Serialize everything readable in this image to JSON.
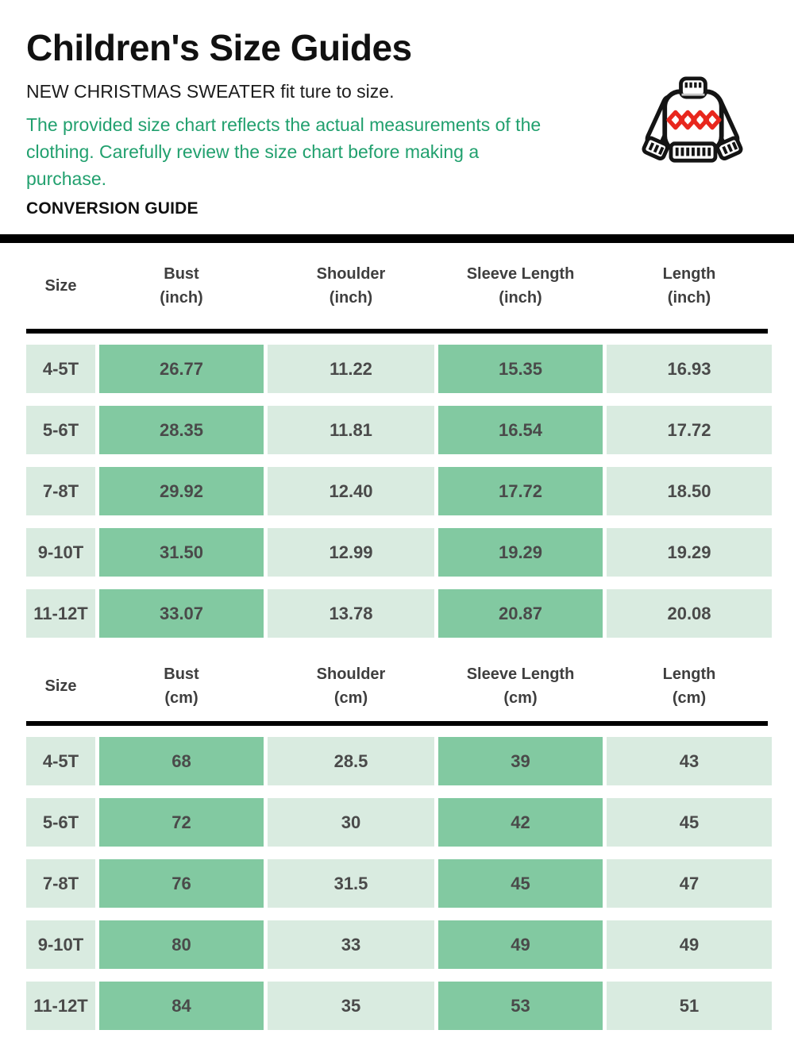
{
  "header": {
    "title": "Children's Size Guides",
    "subtitle": "NEW CHRISTMAS SWEATER fit ture to size.",
    "note": "The provided size chart reflects the actual measurements of the clothing. Carefully review the size chart before making a purchase.",
    "section_label": "CONVERSION GUIDE"
  },
  "icon": {
    "name": "christmas-sweater-icon",
    "outline_color": "#141414",
    "diamond_color": "#e8271d"
  },
  "colors": {
    "cell_dark": "#82c9a1",
    "cell_light": "#d9ebe0",
    "note_green": "#21a06e",
    "table_text": "#4a4a4a",
    "header_text": "#3f3f3f",
    "divider": "#000000"
  },
  "tables": [
    {
      "unit": "inch",
      "headers": [
        {
          "line1": "Size",
          "line2": ""
        },
        {
          "line1": "Bust",
          "line2": "(inch)"
        },
        {
          "line1": "Shoulder",
          "line2": "(inch)"
        },
        {
          "line1": "Sleeve Length",
          "line2": "(inch)"
        },
        {
          "line1": "Length",
          "line2": "(inch)"
        }
      ],
      "rows": [
        {
          "size": "4-5T",
          "values": [
            "26.77",
            "11.22",
            "15.35",
            "16.93"
          ]
        },
        {
          "size": "5-6T",
          "values": [
            "28.35",
            "11.81",
            "16.54",
            "17.72"
          ]
        },
        {
          "size": "7-8T",
          "values": [
            "29.92",
            "12.40",
            "17.72",
            "18.50"
          ]
        },
        {
          "size": "9-10T",
          "values": [
            "31.50",
            "12.99",
            "19.29",
            "19.29"
          ]
        },
        {
          "size": "11-12T",
          "values": [
            "33.07",
            "13.78",
            "20.87",
            "20.08"
          ]
        }
      ]
    },
    {
      "unit": "cm",
      "headers": [
        {
          "line1": "Size",
          "line2": ""
        },
        {
          "line1": "Bust",
          "line2": "(cm)"
        },
        {
          "line1": "Shoulder",
          "line2": "(cm)"
        },
        {
          "line1": "Sleeve Length",
          "line2": "(cm)"
        },
        {
          "line1": "Length",
          "line2": "(cm)"
        }
      ],
      "rows": [
        {
          "size": "4-5T",
          "values": [
            "68",
            "28.5",
            "39",
            "43"
          ]
        },
        {
          "size": "5-6T",
          "values": [
            "72",
            "30",
            "42",
            "45"
          ]
        },
        {
          "size": "7-8T",
          "values": [
            "76",
            "31.5",
            "45",
            "47"
          ]
        },
        {
          "size": "9-10T",
          "values": [
            "80",
            "33",
            "49",
            "49"
          ]
        },
        {
          "size": "11-12T",
          "values": [
            "84",
            "35",
            "53",
            "51"
          ]
        }
      ]
    }
  ]
}
